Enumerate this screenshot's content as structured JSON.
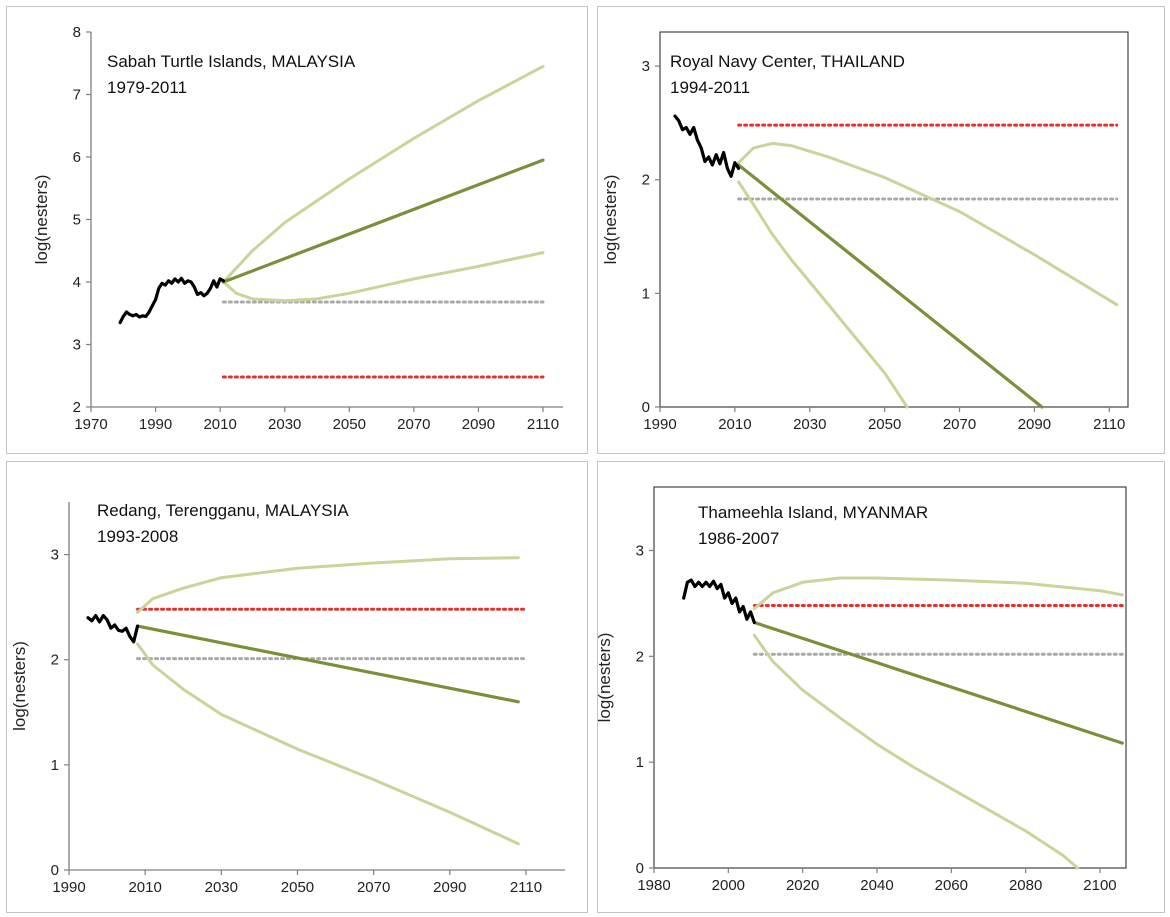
{
  "colors": {
    "observed": "#000000",
    "mean_projection": "#7a8f3a",
    "bounds": "#c8d59a",
    "red_threshold": "#e8302a",
    "gray_threshold": "#a9a9a9",
    "axis": "#7f7f7f"
  },
  "chart_data": [
    {
      "type": "line",
      "title": "Sabah Turtle Islands, MALAYSIA",
      "subtitle": "1979-2011",
      "xlabel": "",
      "ylabel": "log(nesters)",
      "xlim": [
        1970,
        2110
      ],
      "ylim": [
        2,
        8
      ],
      "xticks": [
        "1970",
        "1990",
        "2010",
        "2030",
        "2050",
        "2070",
        "2090",
        "2110"
      ],
      "yticks": [
        "2",
        "3",
        "4",
        "5",
        "6",
        "7",
        "8"
      ],
      "series": [
        {
          "role": "observed",
          "x": [
            1979,
            1980,
            1981,
            1982,
            1983,
            1984,
            1985,
            1986,
            1987,
            1988,
            1989,
            1990,
            1991,
            1992,
            1993,
            1994,
            1995,
            1996,
            1997,
            1998,
            1999,
            2000,
            2001,
            2002,
            2003,
            2004,
            2005,
            2006,
            2007,
            2008,
            2009,
            2010,
            2011
          ],
          "y": [
            3.35,
            3.45,
            3.52,
            3.48,
            3.46,
            3.48,
            3.44,
            3.46,
            3.45,
            3.52,
            3.62,
            3.72,
            3.9,
            3.98,
            3.95,
            4.02,
            3.98,
            4.05,
            4.0,
            4.06,
            3.98,
            4.02,
            4.0,
            3.92,
            3.8,
            3.83,
            3.78,
            3.82,
            3.9,
            4.02,
            3.92,
            4.05,
            4.02
          ]
        },
        {
          "role": "mean",
          "x": [
            2011,
            2110
          ],
          "y": [
            4.0,
            5.95
          ]
        },
        {
          "role": "upper",
          "x": [
            2011,
            2020,
            2030,
            2050,
            2070,
            2090,
            2110
          ],
          "y": [
            4.0,
            4.5,
            4.95,
            5.65,
            6.3,
            6.9,
            7.45
          ]
        },
        {
          "role": "lower",
          "x": [
            2011,
            2015,
            2020,
            2030,
            2040,
            2050,
            2070,
            2090,
            2110
          ],
          "y": [
            4.0,
            3.82,
            3.73,
            3.7,
            3.73,
            3.82,
            4.05,
            4.25,
            4.47
          ]
        }
      ],
      "thresholds": [
        {
          "role": "gray",
          "x": [
            2011,
            2110
          ],
          "y": 3.68
        },
        {
          "role": "red",
          "x": [
            2011,
            2110
          ],
          "y": 2.48
        }
      ]
    },
    {
      "type": "line",
      "title": "Royal Navy Center, THAILAND",
      "subtitle": "1994-2011",
      "xlabel": "",
      "ylabel": "log(nesters)",
      "xlim": [
        1990,
        2115
      ],
      "ylim": [
        0,
        3.3
      ],
      "xticks": [
        "1990",
        "2010",
        "2030",
        "2050",
        "2070",
        "2090",
        "2110"
      ],
      "yticks": [
        "0",
        "1",
        "2",
        "3"
      ],
      "series": [
        {
          "role": "observed",
          "x": [
            1994,
            1995,
            1996,
            1997,
            1998,
            1999,
            2000,
            2001,
            2002,
            2003,
            2004,
            2005,
            2006,
            2007,
            2008,
            2009,
            2010,
            2011
          ],
          "y": [
            2.56,
            2.52,
            2.44,
            2.46,
            2.4,
            2.46,
            2.35,
            2.28,
            2.16,
            2.2,
            2.13,
            2.22,
            2.14,
            2.24,
            2.1,
            2.03,
            2.15,
            2.1
          ]
        },
        {
          "role": "mean",
          "x": [
            2011,
            2092
          ],
          "y": [
            2.13,
            0
          ]
        },
        {
          "role": "upper",
          "x": [
            2011,
            2015,
            2020,
            2025,
            2035,
            2050,
            2070,
            2090,
            2112
          ],
          "y": [
            2.15,
            2.28,
            2.32,
            2.3,
            2.2,
            2.02,
            1.72,
            1.34,
            0.9
          ]
        },
        {
          "role": "lower",
          "x": [
            2011,
            2015,
            2020,
            2025,
            2030,
            2040,
            2050,
            2056
          ],
          "y": [
            1.98,
            1.78,
            1.52,
            1.3,
            1.1,
            0.7,
            0.3,
            0
          ]
        }
      ],
      "thresholds": [
        {
          "role": "red",
          "x": [
            2011,
            2112
          ],
          "y": 2.48
        },
        {
          "role": "gray",
          "x": [
            2011,
            2112
          ],
          "y": 1.83
        }
      ]
    },
    {
      "type": "line",
      "title": "Redang, Terengganu, MALAYSIA",
      "subtitle": "1993-2008",
      "xlabel": "",
      "ylabel": "log(nesters)",
      "xlim": [
        1990,
        2115
      ],
      "ylim": [
        0,
        3.5
      ],
      "xticks": [
        "1990",
        "2010",
        "2030",
        "2050",
        "2070",
        "2090",
        "2110"
      ],
      "yticks": [
        "0",
        "1",
        "2",
        "3"
      ],
      "series": [
        {
          "role": "observed",
          "x": [
            1995,
            1996,
            1997,
            1998,
            1999,
            2000,
            2001,
            2002,
            2003,
            2004,
            2005,
            2006,
            2007,
            2008
          ],
          "y": [
            2.4,
            2.37,
            2.42,
            2.36,
            2.42,
            2.38,
            2.3,
            2.33,
            2.28,
            2.27,
            2.3,
            2.22,
            2.17,
            2.32
          ]
        },
        {
          "role": "mean",
          "x": [
            2008,
            2108
          ],
          "y": [
            2.32,
            1.6
          ]
        },
        {
          "role": "upper",
          "x": [
            2008,
            2012,
            2020,
            2030,
            2050,
            2070,
            2090,
            2108
          ],
          "y": [
            2.45,
            2.58,
            2.68,
            2.78,
            2.87,
            2.92,
            2.96,
            2.97
          ]
        },
        {
          "role": "lower",
          "x": [
            2008,
            2012,
            2020,
            2030,
            2050,
            2070,
            2090,
            2108
          ],
          "y": [
            2.15,
            1.95,
            1.72,
            1.48,
            1.15,
            0.86,
            0.55,
            0.25
          ]
        }
      ],
      "thresholds": [
        {
          "role": "red",
          "x": [
            2008,
            2110
          ],
          "y": 2.48
        },
        {
          "role": "gray",
          "x": [
            2008,
            2110
          ],
          "y": 2.01
        }
      ]
    },
    {
      "type": "line",
      "title": "Thameehla Island, MYANMAR",
      "subtitle": "1986-2007",
      "xlabel": "",
      "ylabel": "log(nesters)",
      "xlim": [
        1980,
        2107
      ],
      "ylim": [
        0,
        3.6
      ],
      "xticks": [
        "1980",
        "2000",
        "2020",
        "2040",
        "2060",
        "2080",
        "2100"
      ],
      "yticks": [
        "0",
        "1",
        "2",
        "3"
      ],
      "series": [
        {
          "role": "observed",
          "x": [
            1988,
            1989,
            1990,
            1991,
            1992,
            1993,
            1994,
            1995,
            1996,
            1997,
            1998,
            1999,
            2000,
            2001,
            2002,
            2003,
            2004,
            2005,
            2006,
            2007
          ],
          "y": [
            2.55,
            2.7,
            2.72,
            2.66,
            2.7,
            2.66,
            2.7,
            2.66,
            2.71,
            2.64,
            2.68,
            2.55,
            2.6,
            2.5,
            2.55,
            2.42,
            2.47,
            2.35,
            2.42,
            2.32
          ]
        },
        {
          "role": "mean",
          "x": [
            2007,
            2106
          ],
          "y": [
            2.32,
            1.18
          ]
        },
        {
          "role": "upper",
          "x": [
            2007,
            2012,
            2020,
            2030,
            2040,
            2060,
            2080,
            2100,
            2106
          ],
          "y": [
            2.45,
            2.6,
            2.7,
            2.74,
            2.74,
            2.72,
            2.69,
            2.62,
            2.58
          ]
        },
        {
          "role": "lower",
          "x": [
            2007,
            2012,
            2020,
            2030,
            2040,
            2050,
            2060,
            2070,
            2080,
            2090,
            2094
          ],
          "y": [
            2.2,
            1.95,
            1.68,
            1.42,
            1.17,
            0.95,
            0.75,
            0.55,
            0.35,
            0.12,
            0
          ]
        }
      ],
      "thresholds": [
        {
          "role": "red",
          "x": [
            2007,
            2106
          ],
          "y": 2.48
        },
        {
          "role": "gray",
          "x": [
            2007,
            2106
          ],
          "y": 2.02
        }
      ]
    }
  ]
}
